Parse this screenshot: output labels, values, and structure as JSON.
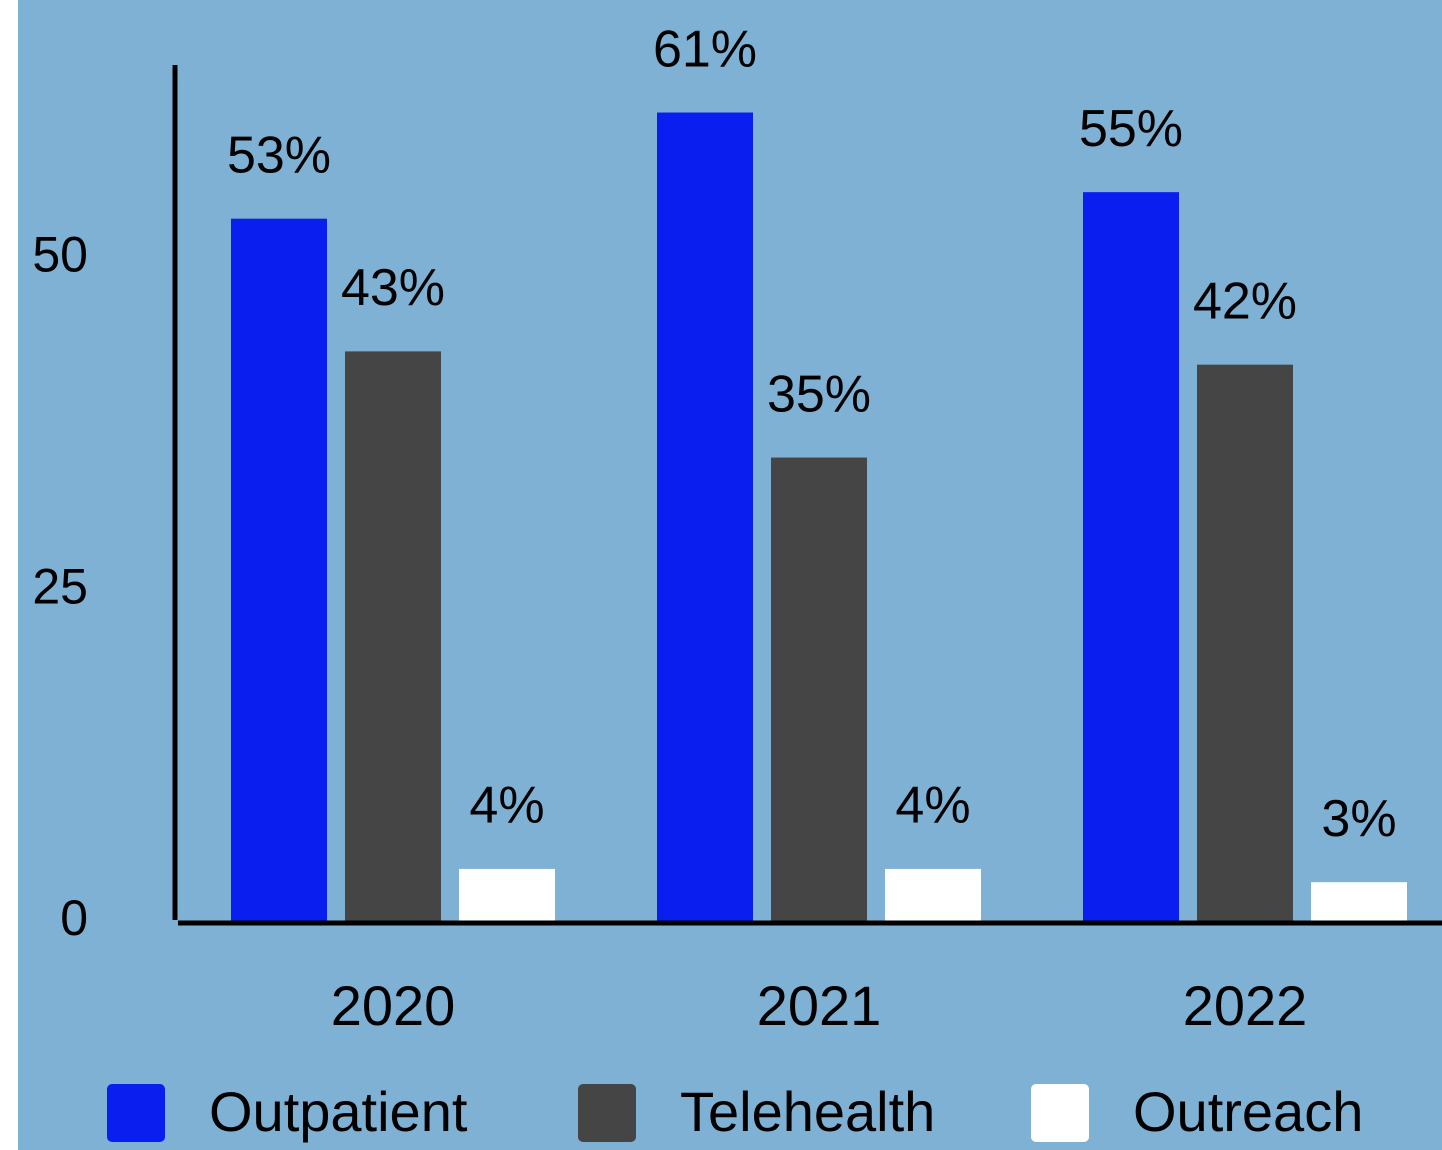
{
  "chart_data": {
    "type": "bar",
    "categories": [
      "2020",
      "2021",
      "2022"
    ],
    "series": [
      {
        "name": "Outpatient",
        "color": "#0a1ef0",
        "values": [
          53,
          61,
          55
        ],
        "value_labels": [
          "53%",
          "61%",
          "55%"
        ]
      },
      {
        "name": "Telehealth",
        "color": "#454545",
        "values": [
          43,
          35,
          42
        ],
        "value_labels": [
          "43%",
          "35%",
          "42%"
        ]
      },
      {
        "name": "Outreach",
        "color": "#ffffff",
        "values": [
          4,
          4,
          3
        ],
        "value_labels": [
          "4%",
          "4%",
          "3%"
        ]
      }
    ],
    "ylim": [
      0,
      65
    ],
    "yticks": [
      0,
      25,
      50
    ],
    "grid": false,
    "legend": "bottom"
  }
}
